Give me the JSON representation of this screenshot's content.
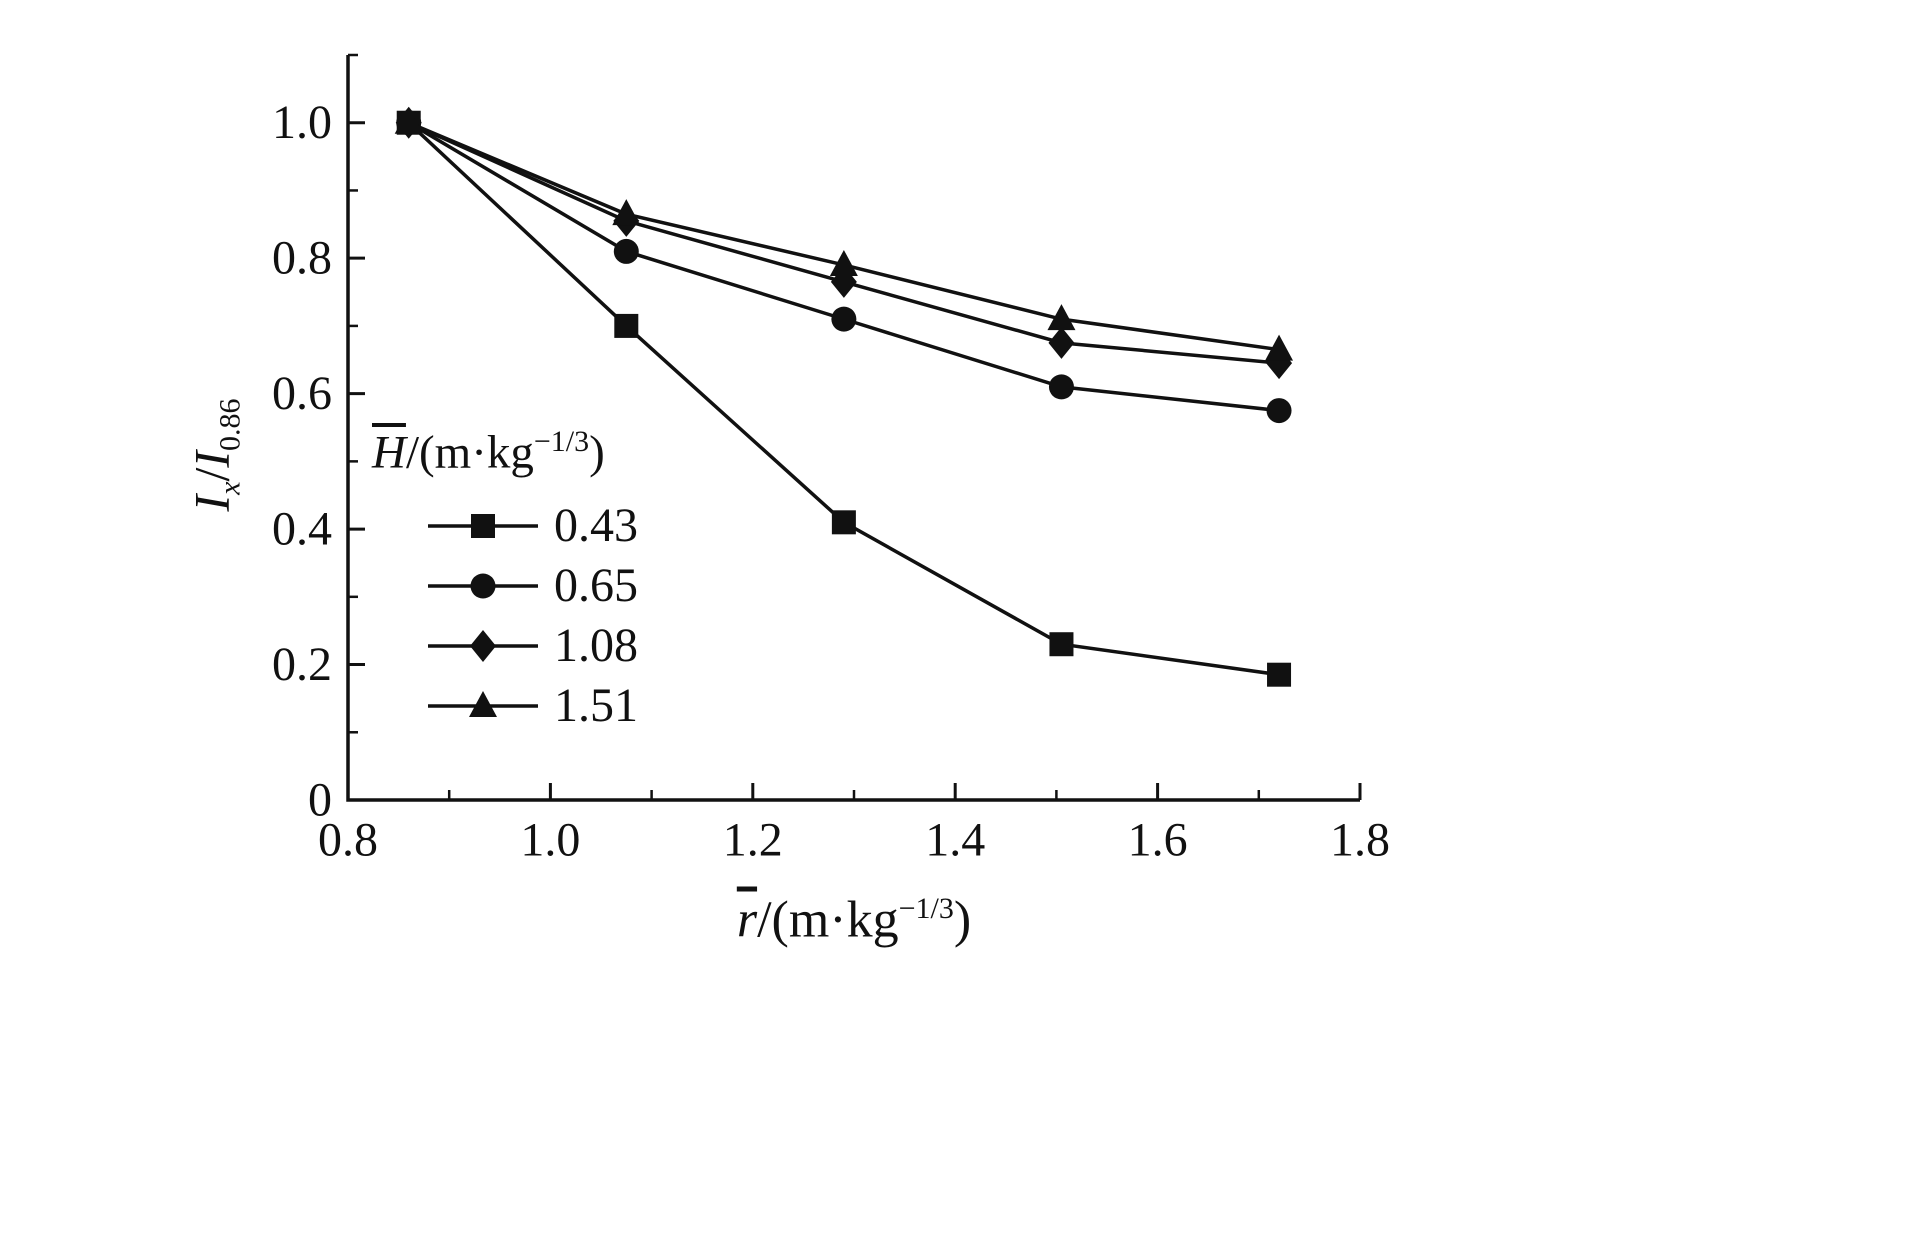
{
  "chart_data": {
    "type": "line",
    "x": [
      0.86,
      1.075,
      1.29,
      1.505,
      1.72
    ],
    "series": [
      {
        "name": "0.43",
        "marker": "square",
        "values": [
          1.0,
          0.7,
          0.41,
          0.23,
          0.185
        ]
      },
      {
        "name": "0.65",
        "marker": "circle",
        "values": [
          1.0,
          0.81,
          0.71,
          0.61,
          0.575
        ]
      },
      {
        "name": "1.08",
        "marker": "diamond",
        "values": [
          1.0,
          0.855,
          0.765,
          0.675,
          0.645
        ]
      },
      {
        "name": "1.51",
        "marker": "triangle",
        "values": [
          1.0,
          0.865,
          0.79,
          0.71,
          0.665
        ]
      }
    ],
    "xlim": [
      0.8,
      1.8
    ],
    "ylim": [
      0,
      1.1
    ],
    "xticks": [
      0.8,
      1.0,
      1.2,
      1.4,
      1.6,
      1.8
    ],
    "yticks": [
      0,
      0.2,
      0.4,
      0.6,
      0.8,
      1.0
    ],
    "xtick_labels": [
      "0.8",
      "1.0",
      "1.2",
      "1.4",
      "1.6",
      "1.8"
    ],
    "ytick_labels": [
      "0",
      "0.2",
      "0.4",
      "0.6",
      "0.8",
      "1.0"
    ],
    "grid": false,
    "legend_position": "inside-left-middle",
    "line_color": "#111111",
    "xlabel": {
      "var": "r",
      "pre": "/(m·kg",
      "sup": "−1/3",
      "post": ")"
    },
    "ylabel": {
      "i1": "I",
      "sub1": "x",
      "slash": "/",
      "i2": "I",
      "sub2": "0.86"
    },
    "legend_title": {
      "var": "H",
      "pre": "/(m·kg",
      "sup": "−1/3",
      "post": ")"
    }
  }
}
